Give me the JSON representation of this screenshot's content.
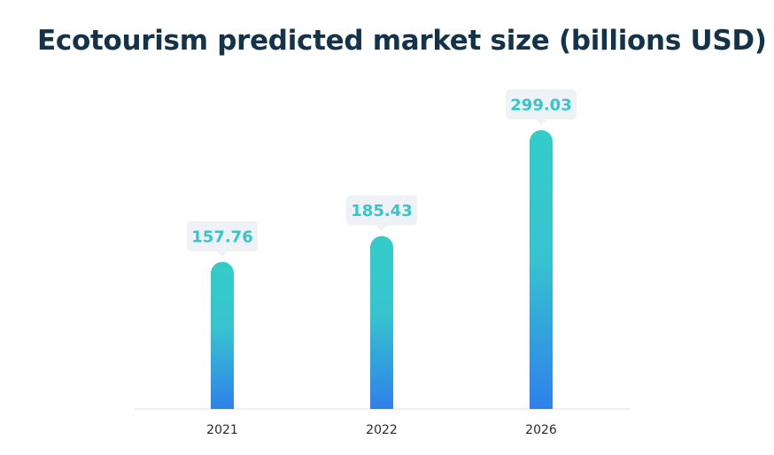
{
  "chart_data": {
    "type": "bar",
    "title": "Ecotourism predicted market size (billions USD)",
    "categories": [
      "2021",
      "2022",
      "2026"
    ],
    "values": [
      157.76,
      185.43,
      299.03
    ],
    "value_labels": [
      "157.76",
      "185.43",
      "299.03"
    ],
    "xlabel": "",
    "ylabel": "",
    "ylim": [
      0,
      299.03
    ],
    "grid": false,
    "colors": {
      "bar_top": "#33ccc9",
      "bar_mid": "#37c4cf",
      "bar_bottom": "#2f80ea",
      "label_text": "#33c7c7",
      "label_bg": "#eef2f6",
      "axis": "#e3e6ea",
      "title": "#13334a"
    }
  }
}
